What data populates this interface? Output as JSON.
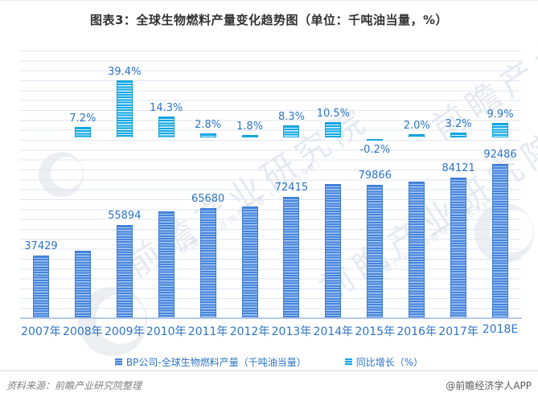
{
  "title": "图表3：全球生物燃料产量变化趋势图（单位：千吨油当量，%）",
  "chart_data": {
    "type": "bar",
    "categories": [
      "2007年",
      "2008年",
      "2009年",
      "2010年",
      "2011年",
      "2012年",
      "2013年",
      "2014年",
      "2015年",
      "2016年",
      "2017年",
      "2018E"
    ],
    "series": [
      {
        "name": "BP公司-全球生物燃料产量（千吨油当量）",
        "axis": "primary",
        "color": "#4584dc",
        "values": [
          37429,
          40124,
          55894,
          63887,
          65680,
          66862,
          72415,
          80019,
          79866,
          81463,
          84121,
          92486
        ],
        "labels": [
          "37429",
          null,
          "55894",
          null,
          "65680",
          null,
          "72415",
          null,
          "79866",
          null,
          "84121",
          "92486"
        ]
      },
      {
        "name": "同比增长（%）",
        "axis": "secondary",
        "color": "#12a7e2",
        "values": [
          null,
          7.2,
          39.4,
          14.3,
          2.8,
          1.8,
          8.3,
          10.5,
          -0.2,
          2.0,
          3.2,
          9.9
        ],
        "labels": [
          null,
          "7.2%",
          "39.4%",
          "14.3%",
          "2.8%",
          "1.8%",
          "8.3%",
          "10.5%",
          "-0.2%",
          "2.0%",
          "3.2%",
          "9.9%"
        ]
      }
    ],
    "axes": {
      "primary": {
        "min": 0,
        "max": 160000
      },
      "secondary": {
        "min": -125,
        "max": 60
      }
    },
    "grid": true,
    "legend_position": "bottom",
    "title": "图表3：全球生物燃料产量变化趋势图（单位：千吨油当量，%）"
  },
  "legend": {
    "items": [
      {
        "label": "BP公司-全球生物燃料产量（千吨油当量）",
        "color": "#4584dc"
      },
      {
        "label": "同比增长（%）",
        "color": "#12a7e2"
      }
    ]
  },
  "footer": {
    "source": "资料来源：前瞻产业研究院整理",
    "credit": "@前瞻经济学人APP"
  },
  "watermark": {
    "text": "前瞻产业研究院",
    "subtext": "中国产业咨询领导者（839599）"
  },
  "colors": {
    "primary_bar": "#4584dc",
    "primary_bar_stripe": "#abc9f1",
    "secondary_bar": "#12a7e2",
    "secondary_bar_stripe": "#d9f3fc",
    "label_text": "#2e74c6",
    "gridline": "#dfe6f3",
    "axis_line": "#b3c9e8",
    "title_text": "#333333"
  }
}
